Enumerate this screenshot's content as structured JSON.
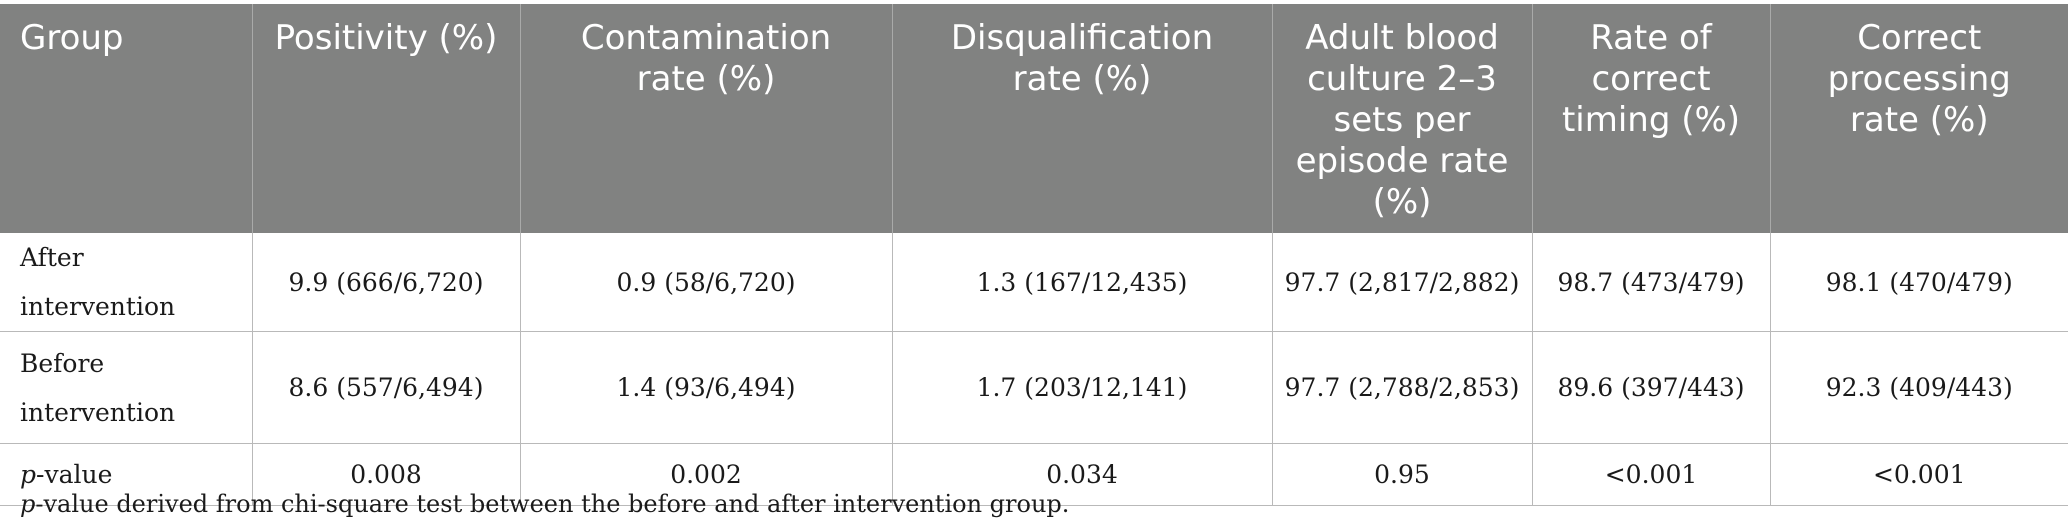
{
  "table": {
    "headers": [
      "Group",
      "Positivity (%)",
      "Contamination rate (%)",
      "Disqualification rate (%)",
      "Adult blood culture 2–3 sets per episode rate (%)",
      "Rate of correct timing (%)",
      "Correct processing rate (%)"
    ],
    "rows": [
      {
        "group": "After intervention",
        "cells": [
          "9.9 (666/6,720)",
          "0.9 (58/6,720)",
          "1.3 (167/12,435)",
          "97.7 (2,817/2,882)",
          "98.7 (473/479)",
          "98.1 (470/479)"
        ]
      },
      {
        "group": "Before intervention",
        "cells": [
          "8.6 (557/6,494)",
          "1.4 (93/6,494)",
          "1.7 (203/12,141)",
          "97.7 (2,788/2,853)",
          "89.6 (397/443)",
          "92.3 (409/443)"
        ]
      },
      {
        "group_p": "p",
        "group_rest": "-value",
        "cells": [
          "0.008",
          "0.002",
          "0.034",
          "0.95",
          "<0.001",
          "<0.001"
        ]
      }
    ]
  },
  "footnote": {
    "p": "p",
    "rest": "-value derived from chi-square test between the before and after intervention group."
  }
}
